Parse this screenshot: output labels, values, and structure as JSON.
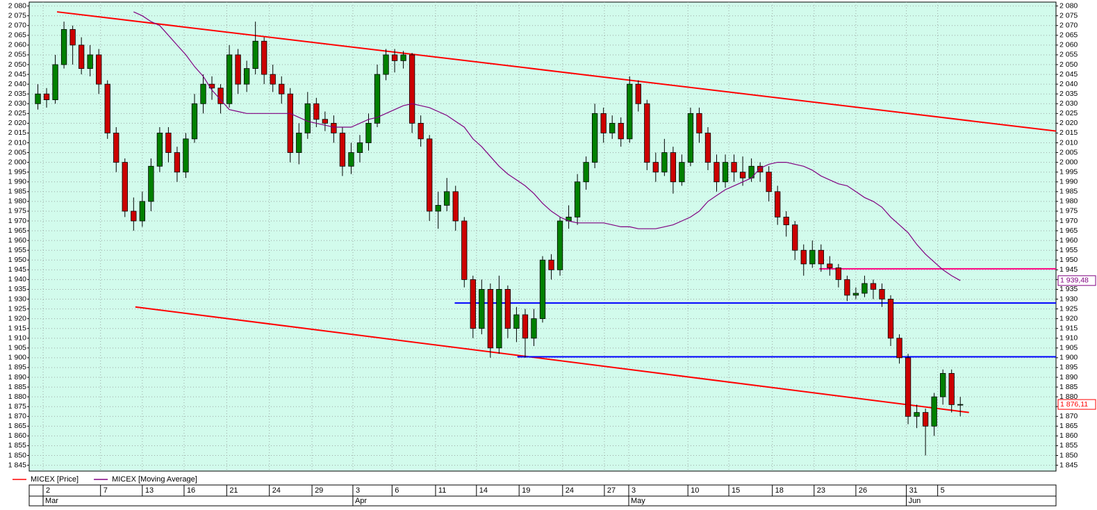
{
  "chart_data": {
    "type": "candlestick",
    "x": [
      1,
      2,
      3,
      4,
      5,
      6,
      7,
      8,
      9,
      10,
      11,
      12,
      13,
      14,
      15,
      16,
      17,
      18,
      19,
      20,
      21,
      22,
      23,
      24,
      25,
      26,
      27,
      28,
      29,
      30,
      31,
      32,
      33,
      34,
      35,
      36,
      37,
      38,
      39,
      40,
      41,
      42,
      43,
      44,
      45,
      46,
      47,
      48,
      49,
      50,
      51,
      52,
      53,
      54,
      55,
      56,
      57,
      58,
      59,
      60,
      61,
      62,
      63,
      64,
      65,
      66,
      67,
      68,
      69,
      70,
      71,
      72,
      73,
      74,
      75,
      76,
      77,
      78,
      79,
      80,
      81,
      82,
      83,
      84,
      85,
      86,
      87,
      88,
      89,
      90,
      91,
      92,
      93,
      94,
      95,
      96,
      97,
      98,
      99,
      100,
      101,
      102,
      103,
      104,
      105,
      106,
      107
    ],
    "xlim": [
      0,
      118
    ],
    "ylim": [
      1842,
      2082
    ],
    "grid": true,
    "yticks": [
      {
        "value": 1845,
        "label": "1 845"
      },
      {
        "value": 1850,
        "label": "1 850"
      },
      {
        "value": 1855,
        "label": "1 855"
      },
      {
        "value": 1860,
        "label": "1 860"
      },
      {
        "value": 1865,
        "label": "1 865"
      },
      {
        "value": 1870,
        "label": "1 870"
      },
      {
        "value": 1875,
        "label": "1 875"
      },
      {
        "value": 1880,
        "label": "1 880"
      },
      {
        "value": 1885,
        "label": "1 885"
      },
      {
        "value": 1890,
        "label": "1 890"
      },
      {
        "value": 1895,
        "label": "1 895"
      },
      {
        "value": 1900,
        "label": "1 900"
      },
      {
        "value": 1905,
        "label": "1 905"
      },
      {
        "value": 1910,
        "label": "1 910"
      },
      {
        "value": 1915,
        "label": "1 915"
      },
      {
        "value": 1920,
        "label": "1 920"
      },
      {
        "value": 1925,
        "label": "1 925"
      },
      {
        "value": 1930,
        "label": "1 930"
      },
      {
        "value": 1935,
        "label": "1 935"
      },
      {
        "value": 1940,
        "label": "1 940"
      },
      {
        "value": 1945,
        "label": "1 945"
      },
      {
        "value": 1950,
        "label": "1 950"
      },
      {
        "value": 1955,
        "label": "1 955"
      },
      {
        "value": 1960,
        "label": "1 960"
      },
      {
        "value": 1965,
        "label": "1 965"
      },
      {
        "value": 1970,
        "label": "1 970"
      },
      {
        "value": 1975,
        "label": "1 975"
      },
      {
        "value": 1980,
        "label": "1 980"
      },
      {
        "value": 1985,
        "label": "1 985"
      },
      {
        "value": 1990,
        "label": "1 990"
      },
      {
        "value": 1995,
        "label": "1 995"
      },
      {
        "value": 2000,
        "label": "2 000"
      },
      {
        "value": 2005,
        "label": "2 005"
      },
      {
        "value": 2010,
        "label": "2 010"
      },
      {
        "value": 2015,
        "label": "2 015"
      },
      {
        "value": 2020,
        "label": "2 020"
      },
      {
        "value": 2025,
        "label": "2 025"
      },
      {
        "value": 2030,
        "label": "2 030"
      },
      {
        "value": 2035,
        "label": "2 035"
      },
      {
        "value": 2040,
        "label": "2 040"
      },
      {
        "value": 2045,
        "label": "2 045"
      },
      {
        "value": 2050,
        "label": "2 050"
      },
      {
        "value": 2055,
        "label": "2 055"
      },
      {
        "value": 2060,
        "label": "2 060"
      },
      {
        "value": 2065,
        "label": "2 065"
      },
      {
        "value": 2070,
        "label": "2 070"
      },
      {
        "value": 2075,
        "label": "2 075"
      },
      {
        "value": 2080,
        "label": "2 080"
      }
    ],
    "xticks": [
      {
        "value": 1.6,
        "label": "2"
      },
      {
        "value": 8.2,
        "label": "7"
      },
      {
        "value": 13.0,
        "label": "13"
      },
      {
        "value": 17.8,
        "label": "16"
      },
      {
        "value": 22.7,
        "label": "21"
      },
      {
        "value": 27.6,
        "label": "24"
      },
      {
        "value": 32.5,
        "label": "29"
      },
      {
        "value": 37.2,
        "label": "3"
      },
      {
        "value": 41.7,
        "label": "6"
      },
      {
        "value": 46.7,
        "label": "11"
      },
      {
        "value": 51.4,
        "label": "14"
      },
      {
        "value": 56.3,
        "label": "19"
      },
      {
        "value": 61.3,
        "label": "24"
      },
      {
        "value": 66.1,
        "label": "27"
      },
      {
        "value": 68.9,
        "label": "3"
      },
      {
        "value": 75.7,
        "label": "10"
      },
      {
        "value": 80.4,
        "label": "15"
      },
      {
        "value": 85.4,
        "label": "18"
      },
      {
        "value": 90.2,
        "label": "23"
      },
      {
        "value": 95.0,
        "label": "26"
      },
      {
        "value": 100.8,
        "label": "31"
      },
      {
        "value": 104.4,
        "label": "5"
      }
    ],
    "month_ticks": [
      {
        "value": 1.6,
        "label": "Mar"
      },
      {
        "value": 37.2,
        "label": "Apr"
      },
      {
        "value": 68.9,
        "label": "May"
      },
      {
        "value": 100.8,
        "label": "Jun"
      }
    ],
    "series": [
      {
        "name": "MICEX [Price]",
        "color": "#ff0000",
        "up_color": "#008000",
        "down_color": "#cc0000",
        "values": [
          [
            2030,
            2040,
            2027,
            2035
          ],
          [
            2035,
            2038,
            2028,
            2032
          ],
          [
            2032,
            2055,
            2030,
            2050
          ],
          [
            2050,
            2072,
            2048,
            2068
          ],
          [
            2068,
            2070,
            2050,
            2060
          ],
          [
            2060,
            2064,
            2045,
            2048
          ],
          [
            2048,
            2060,
            2044,
            2055
          ],
          [
            2055,
            2058,
            2035,
            2040
          ],
          [
            2040,
            2042,
            2012,
            2015
          ],
          [
            2015,
            2018,
            1995,
            2000
          ],
          [
            2000,
            2002,
            1972,
            1975
          ],
          [
            1975,
            1982,
            1965,
            1970
          ],
          [
            1970,
            1985,
            1967,
            1980
          ],
          [
            1980,
            2002,
            1975,
            1998
          ],
          [
            1998,
            2018,
            1995,
            2015
          ],
          [
            2015,
            2018,
            2000,
            2005
          ],
          [
            2005,
            2008,
            1990,
            1995
          ],
          [
            1995,
            2015,
            1992,
            2012
          ],
          [
            2012,
            2035,
            2010,
            2030
          ],
          [
            2030,
            2045,
            2025,
            2040
          ],
          [
            2040,
            2044,
            2032,
            2038
          ],
          [
            2038,
            2040,
            2025,
            2030
          ],
          [
            2030,
            2060,
            2028,
            2055
          ],
          [
            2055,
            2058,
            2035,
            2040
          ],
          [
            2040,
            2052,
            2036,
            2048
          ],
          [
            2048,
            2072,
            2045,
            2062
          ],
          [
            2062,
            2064,
            2040,
            2045
          ],
          [
            2045,
            2050,
            2036,
            2040
          ],
          [
            2040,
            2044,
            2030,
            2035
          ],
          [
            2035,
            2038,
            2000,
            2005
          ],
          [
            2005,
            2020,
            1999,
            2015
          ],
          [
            2015,
            2036,
            2012,
            2030
          ],
          [
            2030,
            2033,
            2018,
            2022
          ],
          [
            2022,
            2026,
            2016,
            2020
          ],
          [
            2020,
            2024,
            2010,
            2015
          ],
          [
            2015,
            2018,
            1993,
            1998
          ],
          [
            1998,
            2010,
            1994,
            2005
          ],
          [
            2005,
            2014,
            2000,
            2010
          ],
          [
            2010,
            2025,
            2006,
            2020
          ],
          [
            2020,
            2050,
            2018,
            2045
          ],
          [
            2045,
            2058,
            2042,
            2055
          ],
          [
            2055,
            2058,
            2046,
            2052
          ],
          [
            2052,
            2057,
            2048,
            2055
          ],
          [
            2055,
            2056,
            2015,
            2020
          ],
          [
            2020,
            2024,
            2008,
            2012
          ],
          [
            2012,
            2014,
            1970,
            1975
          ],
          [
            1975,
            1985,
            1966,
            1978
          ],
          [
            1978,
            1992,
            1975,
            1985
          ],
          [
            1985,
            1988,
            1965,
            1970
          ],
          [
            1970,
            1972,
            1936,
            1940
          ],
          [
            1940,
            1942,
            1910,
            1915
          ],
          [
            1915,
            1940,
            1912,
            1935
          ],
          [
            1935,
            1938,
            1900,
            1905
          ],
          [
            1905,
            1942,
            1902,
            1935
          ],
          [
            1935,
            1937,
            1910,
            1915
          ],
          [
            1915,
            1926,
            1908,
            1922
          ],
          [
            1922,
            1925,
            1900,
            1910
          ],
          [
            1910,
            1925,
            1906,
            1920
          ],
          [
            1920,
            1952,
            1918,
            1950
          ],
          [
            1950,
            1953,
            1940,
            1945
          ],
          [
            1945,
            1972,
            1942,
            1970
          ],
          [
            1970,
            1978,
            1966,
            1972
          ],
          [
            1972,
            1994,
            1968,
            1990
          ],
          [
            1990,
            2003,
            1986,
            2000
          ],
          [
            2000,
            2030,
            1997,
            2025
          ],
          [
            2025,
            2028,
            2010,
            2015
          ],
          [
            2015,
            2024,
            2012,
            2020
          ],
          [
            2020,
            2023,
            2008,
            2012
          ],
          [
            2012,
            2044,
            2010,
            2040
          ],
          [
            2040,
            2042,
            2026,
            2030
          ],
          [
            2030,
            2032,
            1996,
            2000
          ],
          [
            2000,
            2005,
            1990,
            1995
          ],
          [
            1995,
            2012,
            1993,
            2005
          ],
          [
            2005,
            2008,
            1984,
            1990
          ],
          [
            1990,
            2004,
            1988,
            2000
          ],
          [
            2000,
            2028,
            1998,
            2025
          ],
          [
            2025,
            2028,
            2010,
            2015
          ],
          [
            2015,
            2018,
            1996,
            2000
          ],
          [
            2000,
            2004,
            1985,
            1990
          ],
          [
            1990,
            2004,
            1987,
            2000
          ],
          [
            2000,
            2004,
            1990,
            1995
          ],
          [
            1995,
            2003,
            1988,
            1992
          ],
          [
            1992,
            2002,
            1990,
            1998
          ],
          [
            1998,
            2000,
            1990,
            1995
          ],
          [
            1995,
            1998,
            1980,
            1985
          ],
          [
            1985,
            1988,
            1968,
            1972
          ],
          [
            1972,
            1975,
            1962,
            1968
          ],
          [
            1968,
            1970,
            1950,
            1955
          ],
          [
            1955,
            1958,
            1942,
            1948
          ],
          [
            1948,
            1960,
            1946,
            1955
          ],
          [
            1955,
            1958,
            1944,
            1948
          ],
          [
            1948,
            1952,
            1942,
            1946
          ],
          [
            1946,
            1948,
            1936,
            1940
          ],
          [
            1940,
            1942,
            1929,
            1932
          ],
          [
            1932,
            1936,
            1930,
            1933
          ],
          [
            1933,
            1942,
            1931,
            1938
          ],
          [
            1938,
            1940,
            1930,
            1935
          ],
          [
            1935,
            1938,
            1926,
            1930
          ],
          [
            1930,
            1932,
            1906,
            1910
          ],
          [
            1910,
            1912,
            1897,
            1900
          ],
          [
            1900,
            1902,
            1866,
            1870
          ],
          [
            1870,
            1876,
            1864,
            1872
          ],
          [
            1872,
            1874,
            1850,
            1865
          ],
          [
            1865,
            1882,
            1860,
            1880
          ],
          [
            1880,
            1894,
            1876,
            1892
          ],
          [
            1892,
            1894,
            1872,
            1876
          ],
          [
            1876,
            1880,
            1870,
            1876.11
          ]
        ]
      },
      {
        "name": "MICEX [Moving Average]",
        "color": "#800080",
        "type": "line",
        "values": [
          null,
          null,
          null,
          null,
          null,
          null,
          null,
          null,
          null,
          null,
          null,
          2077,
          2075,
          2072,
          2070,
          2065,
          2060,
          2055,
          2049,
          2044,
          2037,
          2032,
          2027,
          2026,
          2025,
          2025,
          2025,
          2025,
          2025,
          2025,
          2023,
          2021,
          2020,
          2019,
          2018,
          2018,
          2018,
          2020,
          2022,
          2023,
          2025,
          2027,
          2029,
          2030,
          2029,
          2028,
          2026,
          2024,
          2021,
          2018,
          2012,
          2008,
          2003,
          1998,
          1994,
          1991,
          1988,
          1984,
          1979,
          1975,
          1972,
          1970,
          1969,
          1969,
          1969,
          1969,
          1968,
          1967,
          1967,
          1966,
          1966,
          1966,
          1967,
          1968,
          1970,
          1972,
          1975,
          1980,
          1983,
          1986,
          1988,
          1990,
          1992,
          1997,
          1999,
          2000,
          2000,
          1999,
          1998,
          1996,
          1993,
          1991,
          1989,
          1988,
          1985,
          1982,
          1980,
          1977,
          1972,
          1968,
          1964,
          1958,
          1953,
          1949,
          1945,
          1942,
          1939.48
        ]
      }
    ],
    "trend_lines": [
      {
        "color": "#ff0000",
        "x": [
          3.2,
          118
        ],
        "y": [
          2077,
          2016
        ]
      },
      {
        "color": "#ff0000",
        "x": [
          12.2,
          108
        ],
        "y": [
          1926,
          1872
        ]
      },
      {
        "color": "#0000ff",
        "x": [
          48.9,
          118
        ],
        "y": [
          1928,
          1928
        ]
      },
      {
        "color": "#0000ff",
        "x": [
          56.1,
          118
        ],
        "y": [
          1900.5,
          1900.5
        ]
      },
      {
        "color": "#ff0080",
        "x": [
          90.8,
          118
        ],
        "y": [
          1945.5,
          1945.5
        ]
      }
    ],
    "price_labels": [
      {
        "value": 1939.48,
        "label": "1 939,48",
        "color": "#800080"
      },
      {
        "value": 1876.11,
        "label": "1 876,11",
        "color": "#ff0000"
      }
    ]
  }
}
